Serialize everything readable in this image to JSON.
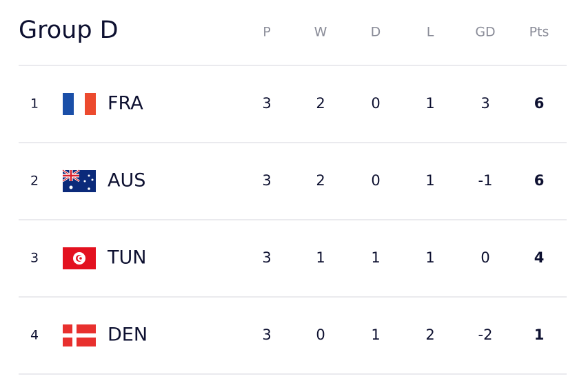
{
  "title": "Group D",
  "table": {
    "header": [
      "P",
      "W",
      "D",
      "L",
      "GD",
      "Pts"
    ],
    "rows": [
      {
        "rank": 1,
        "team": "FRA",
        "stats": [
          3,
          2,
          0,
          1,
          3,
          6
        ]
      },
      {
        "rank": 2,
        "team": "AUS",
        "stats": [
          3,
          2,
          0,
          1,
          -1,
          6
        ]
      },
      {
        "rank": 3,
        "team": "TUN",
        "stats": [
          3,
          1,
          1,
          1,
          0,
          4
        ]
      },
      {
        "rank": 4,
        "team": "DEN",
        "stats": [
          3,
          0,
          1,
          2,
          -2,
          1
        ]
      }
    ]
  }
}
